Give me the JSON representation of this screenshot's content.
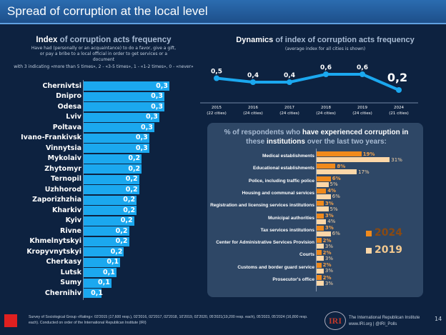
{
  "title": "Spread of corruption at the local level",
  "left": {
    "title_bold": "Index",
    "title_rest": " of corruption acts frequency",
    "subtitle": "Have had (personally or an acquaintance) to do a favor, give a gift, or pay a bribe to a local official in order to get services or a document",
    "scale_note": "with 3 indicating «more than 5 times», 2 - «3-5 times», 1 - «1-2 times», 0 - «never»"
  },
  "right_top": {
    "title_bold": "Dynamics",
    "title_rest": " of index of corruption acts frequency",
    "subtitle": "(average index for all cities is shown)"
  },
  "panel": {
    "title_a": "% of respondents who ",
    "title_b": "have experienced corruption in",
    "title_c": "these ",
    "title_d": "institutions",
    "title_e": " over the last two years:"
  },
  "chart_data": [
    {
      "type": "bar",
      "orientation": "horizontal",
      "categories": [
        "Chernivtsi",
        "Dnipro",
        "Odesa",
        "Lviv",
        "Poltava",
        "Ivano-Frankivsk",
        "Vinnytsia",
        "Mykolaiv",
        "Zhytomyr",
        "Ternopil",
        "Uzhhorod",
        "Zaporizhzhia",
        "Kharkiv",
        "Kyiv",
        "Rivne",
        "Khmelnytskyi",
        "Kropyvnytskyi",
        "Cherkasy",
        "Lutsk",
        "Sumy",
        "Chernihiv"
      ],
      "values": [
        0.34,
        0.32,
        0.32,
        0.3,
        0.28,
        0.26,
        0.26,
        0.23,
        0.23,
        0.22,
        0.22,
        0.21,
        0.21,
        0.2,
        0.18,
        0.18,
        0.16,
        0.145,
        0.13,
        0.11,
        0.07
      ],
      "labels": [
        "0,3",
        "0,3",
        "0,3",
        "0,3",
        "0,3",
        "0,3",
        "0,3",
        "0,2",
        "0,2",
        "0,2",
        "0,2",
        "0,2",
        "0,2",
        "0,2",
        "0,2",
        "0,2",
        "0,2",
        "0,1",
        "0,1",
        "0,1",
        "0,1"
      ],
      "color": "#1ba8ef"
    },
    {
      "type": "line",
      "categories": [
        "2015",
        "2016",
        "2017",
        "2018",
        "2019",
        "2024"
      ],
      "sublabels": [
        "(22 cities)",
        "(24 cities)",
        "(24 cities)",
        "(24 cities)",
        "(24 cities)",
        "(21 cities)"
      ],
      "values": [
        0.5,
        0.4,
        0.4,
        0.6,
        0.6,
        0.2
      ],
      "labels": [
        "0,5",
        "0,4",
        "0,4",
        "0,6",
        "0,6",
        "0,2"
      ],
      "color": "#1ba8ef"
    },
    {
      "type": "bar",
      "orientation": "horizontal",
      "categories": [
        "Medical establishments",
        "Educational establishments",
        "Police, including traffic police",
        "Housing and communal services",
        "Registration and licensing services institutions",
        "Municipal authorities",
        "Tax services institutions",
        "Center for Administrative Services Provision",
        "Courts",
        "Customs and border guard service",
        "Prosecutor's office"
      ],
      "series": [
        {
          "name": "2024",
          "values": [
            19,
            8,
            6,
            4,
            3,
            3,
            3,
            2,
            2,
            2,
            2
          ],
          "color": "#f08a1c"
        },
        {
          "name": "2019",
          "values": [
            31,
            17,
            5,
            6,
            5,
            4,
            6,
            3,
            3,
            3,
            3
          ],
          "color": "#fcd7a8"
        }
      ],
      "unit": "%",
      "legend": "right"
    }
  ],
  "footer": {
    "text": "Survey of Sociological Group «Rating»: 03'2015 (17,600 resp.), 02'2016, 02'2017, 02'2018, 10'2019, 02'2020, 05'2021(19,200 resp. each), 05'2023, 05'2024 (16,800 resp. each). Conducted on order of the International Republican Institute (IRI)",
    "org": "The International Republican Institute",
    "links": "www.IRI.org | @IRI_Polls",
    "page": "14",
    "logo_left": "rating",
    "logo_right": "IRI"
  }
}
